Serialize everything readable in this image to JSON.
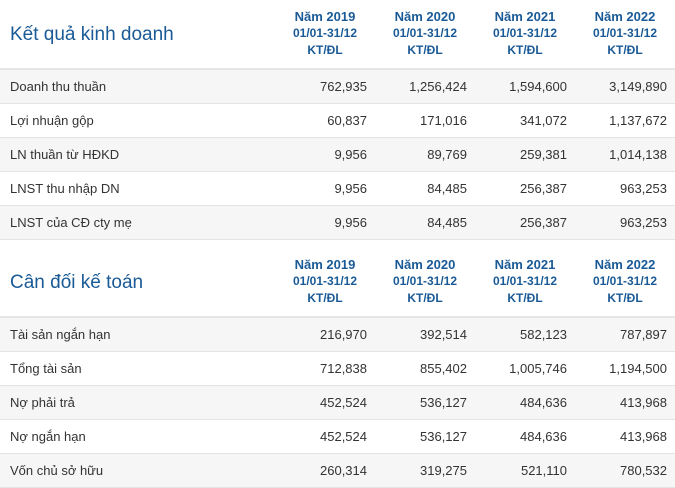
{
  "sections": [
    {
      "title": "Kết quả kinh doanh",
      "columns": [
        {
          "year": "Năm 2019",
          "period": "01/01-31/12",
          "status": "KT/ĐL"
        },
        {
          "year": "Năm 2020",
          "period": "01/01-31/12",
          "status": "KT/ĐL"
        },
        {
          "year": "Năm 2021",
          "period": "01/01-31/12",
          "status": "KT/ĐL"
        },
        {
          "year": "Năm 2022",
          "period": "01/01-31/12",
          "status": "KT/ĐL"
        }
      ],
      "rows": [
        {
          "label": "Doanh thu thuần",
          "values": [
            "762,935",
            "1,256,424",
            "1,594,600",
            "3,149,890"
          ]
        },
        {
          "label": "Lợi nhuận gộp",
          "values": [
            "60,837",
            "171,016",
            "341,072",
            "1,137,672"
          ]
        },
        {
          "label": "LN thuần từ HĐKD",
          "values": [
            "9,956",
            "89,769",
            "259,381",
            "1,014,138"
          ]
        },
        {
          "label": "LNST thu nhập DN",
          "values": [
            "9,956",
            "84,485",
            "256,387",
            "963,253"
          ]
        },
        {
          "label": "LNST của CĐ cty mẹ",
          "values": [
            "9,956",
            "84,485",
            "256,387",
            "963,253"
          ]
        }
      ]
    },
    {
      "title": "Cân đối kế toán",
      "columns": [
        {
          "year": "Năm 2019",
          "period": "01/01-31/12",
          "status": "KT/ĐL"
        },
        {
          "year": "Năm 2020",
          "period": "01/01-31/12",
          "status": "KT/ĐL"
        },
        {
          "year": "Năm 2021",
          "period": "01/01-31/12",
          "status": "KT/ĐL"
        },
        {
          "year": "Năm 2022",
          "period": "01/01-31/12",
          "status": "KT/ĐL"
        }
      ],
      "rows": [
        {
          "label": "Tài sản ngắn hạn",
          "values": [
            "216,970",
            "392,514",
            "582,123",
            "787,897"
          ]
        },
        {
          "label": "Tổng tài sản",
          "values": [
            "712,838",
            "855,402",
            "1,005,746",
            "1,194,500"
          ]
        },
        {
          "label": "Nợ phải trả",
          "values": [
            "452,524",
            "536,127",
            "484,636",
            "413,968"
          ]
        },
        {
          "label": "Nợ ngắn hạn",
          "values": [
            "452,524",
            "536,127",
            "484,636",
            "413,968"
          ]
        },
        {
          "label": "Vốn chủ sở hữu",
          "values": [
            "260,314",
            "319,275",
            "521,110",
            "780,532"
          ]
        }
      ]
    }
  ]
}
